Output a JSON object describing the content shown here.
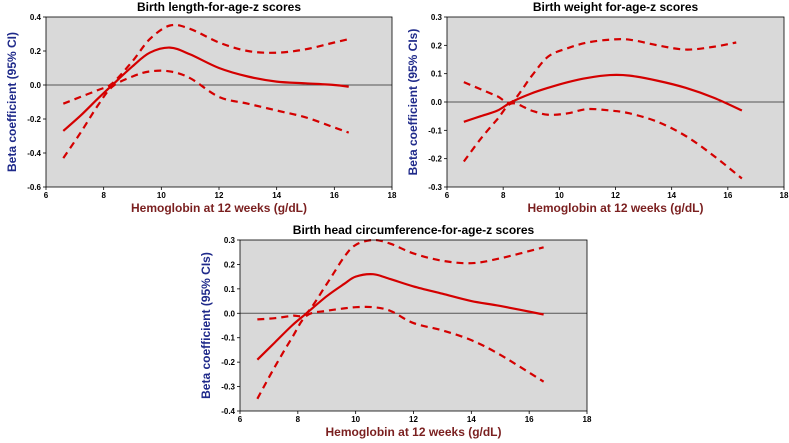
{
  "colors": {
    "plot_bg": "#d9d9d9",
    "curve": "#d40000",
    "zero_line": "#555555",
    "axis": "#000000"
  },
  "chart_data": [
    {
      "type": "line",
      "title": "Birth length-for-age-z scores",
      "xlabel": "Hemoglobin at 12 weeks (g/dL)",
      "ylabel": "Beta coefficient (95% CI)",
      "xlim": [
        6,
        18
      ],
      "ylim": [
        -0.6,
        0.4
      ],
      "xticks": [
        "6",
        "8",
        "10",
        "12",
        "14",
        "16",
        "18"
      ],
      "yticks": [
        "-0.6",
        "-0.4",
        "-0.2",
        "0.0",
        "0.2",
        "0.4"
      ],
      "reference_line_y": 0,
      "series": [
        {
          "name": "estimate",
          "style": "solid",
          "x": [
            6.6,
            7.2,
            7.8,
            8.3,
            9.0,
            9.6,
            10.3,
            11.0,
            12.0,
            13.0,
            14.0,
            15.0,
            16.0,
            16.5
          ],
          "y": [
            -0.27,
            -0.18,
            -0.08,
            0.0,
            0.11,
            0.19,
            0.22,
            0.18,
            0.1,
            0.05,
            0.02,
            0.01,
            0.0,
            -0.01
          ]
        },
        {
          "name": "upper 95% CI",
          "style": "dashed",
          "x": [
            6.6,
            7.2,
            7.8,
            8.3,
            9.0,
            9.6,
            10.3,
            11.0,
            12.0,
            13.0,
            14.0,
            15.0,
            16.0,
            16.5
          ],
          "y": [
            -0.11,
            -0.07,
            -0.03,
            0.01,
            0.14,
            0.27,
            0.35,
            0.33,
            0.25,
            0.2,
            0.19,
            0.21,
            0.25,
            0.27
          ]
        },
        {
          "name": "lower 95% CI",
          "style": "dashed",
          "x": [
            6.6,
            7.2,
            7.8,
            8.3,
            9.0,
            9.6,
            10.3,
            11.0,
            12.0,
            13.0,
            14.0,
            15.0,
            16.0,
            16.5
          ],
          "y": [
            -0.43,
            -0.28,
            -0.12,
            -0.01,
            0.05,
            0.08,
            0.08,
            0.04,
            -0.07,
            -0.11,
            -0.15,
            -0.19,
            -0.25,
            -0.28
          ]
        }
      ]
    },
    {
      "type": "line",
      "title": "Birth weight for-age-z scores",
      "xlabel": "Hemoglobin at 12 weeks (g/dL)",
      "ylabel": "Beta coefficient (95% CIs)",
      "xlim": [
        6,
        18
      ],
      "ylim": [
        -0.3,
        0.3
      ],
      "xticks": [
        "6",
        "8",
        "10",
        "12",
        "14",
        "16",
        "18"
      ],
      "yticks": [
        "-0.3",
        "-0.2",
        "-0.1",
        "0.0",
        "0.1",
        "0.2",
        "0.3"
      ],
      "reference_line_y": 0,
      "series": [
        {
          "name": "estimate",
          "style": "solid",
          "x": [
            6.6,
            7.2,
            7.8,
            8.3,
            9.0,
            9.6,
            10.3,
            11.0,
            11.8,
            12.5,
            13.5,
            14.5,
            15.5,
            16.5
          ],
          "y": [
            -0.07,
            -0.05,
            -0.03,
            0.0,
            0.03,
            0.05,
            0.07,
            0.085,
            0.095,
            0.093,
            0.075,
            0.05,
            0.015,
            -0.03
          ]
        },
        {
          "name": "upper 95% CI",
          "style": "dashed",
          "x": [
            6.6,
            7.2,
            7.8,
            8.3,
            9.0,
            9.6,
            10.3,
            11.0,
            11.8,
            12.5,
            13.5,
            14.5,
            15.5,
            16.3
          ],
          "y": [
            0.07,
            0.045,
            0.02,
            0.0,
            0.09,
            0.16,
            0.19,
            0.21,
            0.22,
            0.22,
            0.2,
            0.185,
            0.195,
            0.21
          ]
        },
        {
          "name": "lower 95% CI",
          "style": "dashed",
          "x": [
            6.6,
            7.2,
            7.8,
            8.3,
            9.0,
            9.6,
            10.3,
            11.0,
            11.8,
            12.5,
            13.5,
            14.5,
            15.5,
            16.5
          ],
          "y": [
            -0.21,
            -0.13,
            -0.06,
            -0.005,
            -0.03,
            -0.045,
            -0.04,
            -0.025,
            -0.03,
            -0.04,
            -0.07,
            -0.12,
            -0.19,
            -0.27
          ]
        }
      ]
    },
    {
      "type": "line",
      "title": "Birth head circumference-for-age-z scores",
      "xlabel": "Hemoglobin at 12 weeks (g/dL)",
      "ylabel": "Beta coefficient (95% CIs)",
      "xlim": [
        6,
        18
      ],
      "ylim": [
        -0.4,
        0.3
      ],
      "xticks": [
        "6",
        "8",
        "10",
        "12",
        "14",
        "16",
        "18"
      ],
      "yticks": [
        "-0.4",
        "-0.3",
        "-0.2",
        "-0.1",
        "0.0",
        "0.1",
        "0.2",
        "0.3"
      ],
      "reference_line_y": 0,
      "series": [
        {
          "name": "estimate",
          "style": "solid",
          "x": [
            6.6,
            7.2,
            7.8,
            8.3,
            9.0,
            9.6,
            10.0,
            10.6,
            11.2,
            12.0,
            13.0,
            14.0,
            15.0,
            16.5
          ],
          "y": [
            -0.19,
            -0.12,
            -0.05,
            0.0,
            0.07,
            0.12,
            0.15,
            0.16,
            0.14,
            0.11,
            0.08,
            0.05,
            0.03,
            -0.005
          ]
        },
        {
          "name": "upper 95% CI",
          "style": "dashed",
          "x": [
            6.6,
            7.2,
            7.8,
            8.3,
            9.0,
            9.6,
            10.0,
            10.6,
            11.2,
            12.0,
            13.0,
            14.0,
            15.0,
            16.5
          ],
          "y": [
            -0.025,
            -0.02,
            -0.01,
            0.0,
            0.12,
            0.23,
            0.28,
            0.3,
            0.285,
            0.245,
            0.215,
            0.205,
            0.225,
            0.27
          ]
        },
        {
          "name": "lower 95% CI",
          "style": "dashed",
          "x": [
            6.6,
            7.2,
            7.8,
            8.3,
            9.0,
            9.6,
            10.0,
            10.6,
            11.2,
            12.0,
            13.0,
            14.0,
            15.0,
            16.5
          ],
          "y": [
            -0.35,
            -0.22,
            -0.1,
            -0.01,
            0.01,
            0.02,
            0.025,
            0.025,
            0.01,
            -0.04,
            -0.07,
            -0.11,
            -0.17,
            -0.28
          ]
        }
      ]
    }
  ]
}
